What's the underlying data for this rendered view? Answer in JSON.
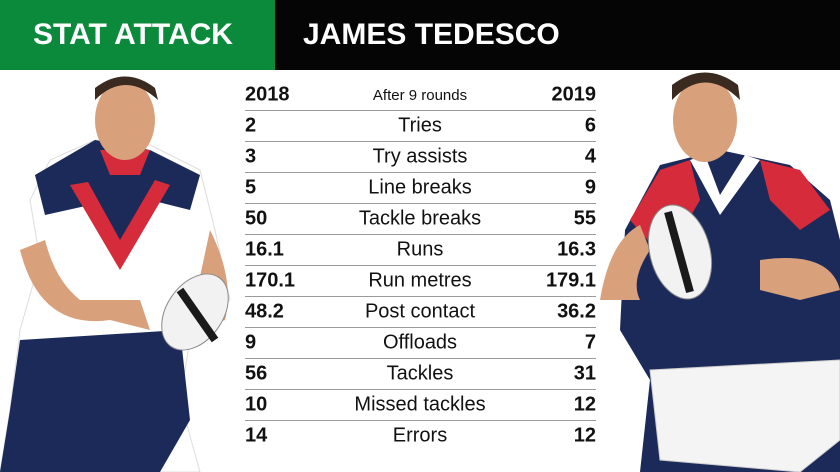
{
  "header": {
    "tag": "STAT ATTACK",
    "title": "JAMES TEDESCO"
  },
  "table": {
    "columns": [
      "2018",
      "After 9 rounds",
      "2019"
    ],
    "rows": [
      [
        2,
        "Tries",
        6
      ],
      [
        3,
        "Try assists",
        4
      ],
      [
        5,
        "Line breaks",
        9
      ],
      [
        50,
        "Tackle breaks",
        55
      ],
      [
        16.1,
        "Runs",
        16.3
      ],
      [
        170.1,
        "Run metres",
        179.1
      ],
      [
        48.2,
        "Post contact",
        36.2
      ],
      [
        9,
        "Offloads",
        7
      ],
      [
        56,
        "Tackles",
        31
      ],
      [
        10,
        "Missed tackles",
        12
      ],
      [
        14,
        "Errors",
        12
      ]
    ]
  }
}
